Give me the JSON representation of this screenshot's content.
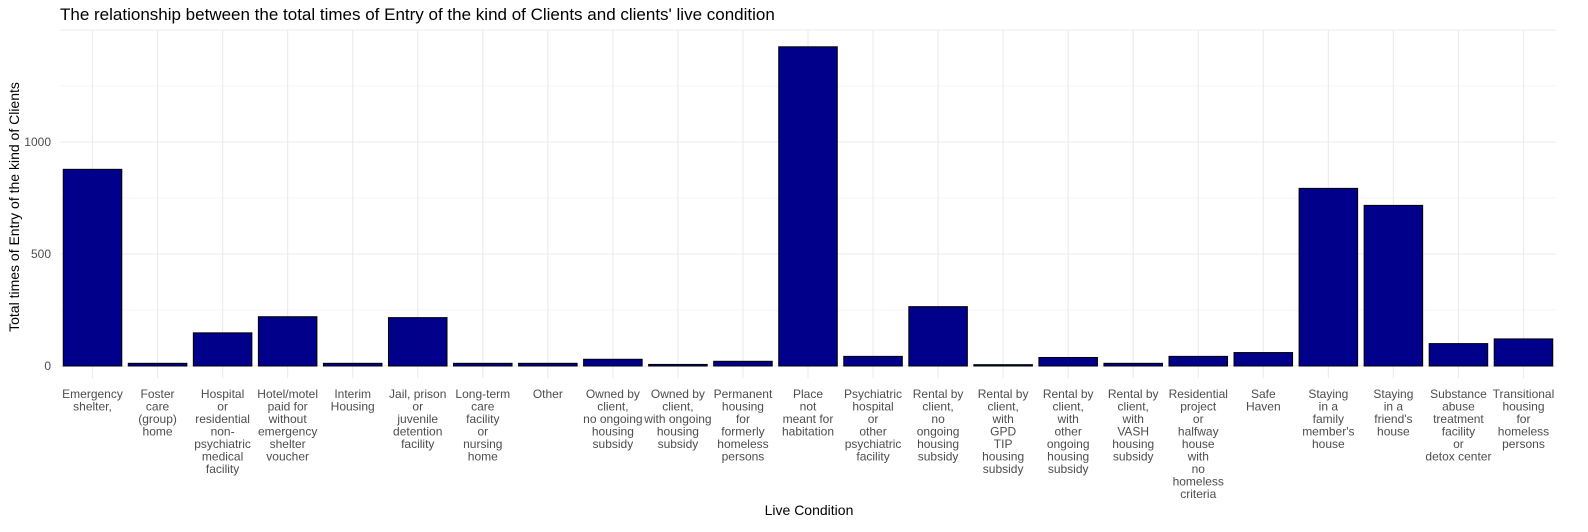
{
  "chart_data": {
    "type": "bar",
    "title": "The relationship between the total times of Entry of the kind of Clients and clients' live condition",
    "xlabel": "Live Condition",
    "ylabel": "Total times of Entry of the kind of Clients",
    "ylim": [
      0,
      1500
    ],
    "yticks": [
      0,
      500,
      1000
    ],
    "grid": true,
    "bar_color": "#00008b",
    "bar_outline": "#000000",
    "categories": [
      [
        "Emergency",
        "shelter,"
      ],
      [
        "Foster",
        "care",
        "(group)",
        "home"
      ],
      [
        "Hospital",
        "or",
        "residential",
        "non-",
        "psychiatric",
        "medical",
        "facility"
      ],
      [
        "Hotel/motel",
        "paid for",
        "without",
        "emergency",
        "shelter",
        "voucher"
      ],
      [
        "Interim",
        "Housing"
      ],
      [
        "Jail, prison",
        "or",
        "juvenile",
        "detention",
        "facility"
      ],
      [
        "Long-term",
        "care",
        "facility",
        "or",
        "nursing",
        "home"
      ],
      [
        "Other"
      ],
      [
        "Owned by",
        "client,",
        "no ongoing",
        "housing",
        "subsidy"
      ],
      [
        "Owned by",
        "client,",
        "with ongoing",
        "housing",
        "subsidy"
      ],
      [
        "Permanent",
        "housing",
        "for",
        "formerly",
        "homeless",
        "persons"
      ],
      [
        "Place",
        "not",
        "meant for",
        "habitation"
      ],
      [
        "Psychiatric",
        "hospital",
        "or",
        "other",
        "psychiatric",
        "facility"
      ],
      [
        "Rental by",
        "client,",
        "no",
        "ongoing",
        "housing",
        "subsidy"
      ],
      [
        "Rental by",
        "client,",
        "with",
        "GPD",
        "TIP",
        "housing",
        "subsidy"
      ],
      [
        "Rental by",
        "client,",
        "with",
        "other",
        "ongoing",
        "housing",
        "subsidy"
      ],
      [
        "Rental by",
        "client,",
        "with",
        "VASH",
        "housing",
        "subsidy"
      ],
      [
        "Residential",
        "project",
        "or",
        "halfway",
        "house",
        "with",
        "no",
        "homeless",
        "criteria"
      ],
      [
        "Safe",
        "Haven"
      ],
      [
        "Staying",
        "in a",
        "family",
        "member's",
        "house"
      ],
      [
        "Staying",
        "in a",
        "friend's",
        "house"
      ],
      [
        "Substance",
        "abuse",
        "treatment",
        "facility",
        "or",
        "detox center"
      ],
      [
        "Transitional",
        "housing",
        "for",
        "homeless",
        "persons"
      ]
    ],
    "values": [
      878,
      12,
      148,
      220,
      12,
      216,
      12,
      12,
      30,
      7,
      21,
      1425,
      43,
      265,
      6,
      38,
      12,
      43,
      60,
      793,
      717,
      100,
      121
    ]
  }
}
